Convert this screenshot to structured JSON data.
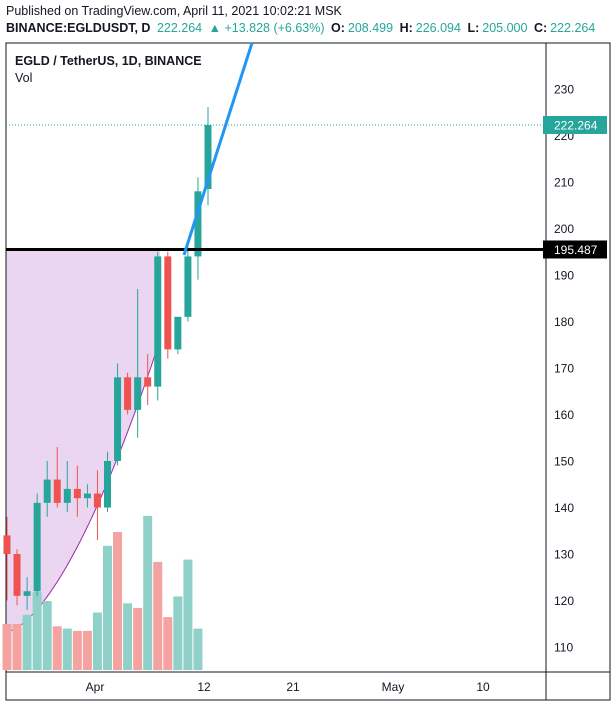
{
  "header": {
    "published": "Published on TradingView.com, April 11, 2021 10:02:21 MSK",
    "symbol": "BINANCE:EGLDUSDT, D",
    "last": "222.264",
    "change": "▲ +13.828 (+6.63%)",
    "o_label": "O:",
    "o_value": "208.499",
    "h_label": "H:",
    "h_value": "226.094",
    "l_label": "L:",
    "l_value": "205.000",
    "c_label": "C:",
    "c_value": "222.264"
  },
  "chart_title": "EGLD / TetherUS, 1D, BINANCE",
  "volume_label": "Vol",
  "price_label": "222.264",
  "level_label": "195.487",
  "colors": {
    "up": "#26a69a",
    "down": "#ef5350",
    "vol_up": "#8fd0c8",
    "vol_down": "#f4a3a1",
    "trend": "#2196f3",
    "level": "#000000",
    "zone": "#e6cfee"
  },
  "chart_data": {
    "type": "candlestick",
    "title": "EGLD / TetherUS, 1D, BINANCE",
    "y_ticks": [
      110,
      120,
      130,
      140,
      150,
      160,
      170,
      180,
      190,
      200,
      210,
      220,
      230
    ],
    "x_ticks": [
      "Apr",
      "12",
      "21",
      "May",
      "10"
    ],
    "ylim": [
      105,
      240
    ],
    "candles": [
      {
        "o": 134,
        "h": 138,
        "l": 120,
        "c": 130
      },
      {
        "o": 130,
        "h": 131,
        "l": 119,
        "c": 121
      },
      {
        "o": 121,
        "h": 125,
        "l": 118,
        "c": 122
      },
      {
        "o": 122,
        "h": 143,
        "l": 121,
        "c": 141
      },
      {
        "o": 141,
        "h": 150,
        "l": 138,
        "c": 146
      },
      {
        "o": 146,
        "h": 153,
        "l": 140,
        "c": 141
      },
      {
        "o": 141,
        "h": 150,
        "l": 139,
        "c": 144
      },
      {
        "o": 144,
        "h": 149,
        "l": 138,
        "c": 142
      },
      {
        "o": 142,
        "h": 145,
        "l": 140,
        "c": 143
      },
      {
        "o": 143,
        "h": 148,
        "l": 133,
        "c": 140
      },
      {
        "o": 140,
        "h": 152,
        "l": 139,
        "c": 150
      },
      {
        "o": 150,
        "h": 171,
        "l": 149,
        "c": 168
      },
      {
        "o": 168,
        "h": 169,
        "l": 160,
        "c": 161
      },
      {
        "o": 161,
        "h": 187,
        "l": 155,
        "c": 168
      },
      {
        "o": 168,
        "h": 173,
        "l": 162,
        "c": 166
      },
      {
        "o": 166,
        "h": 195,
        "l": 163,
        "c": 194
      },
      {
        "o": 194,
        "h": 195,
        "l": 172,
        "c": 174
      },
      {
        "o": 174,
        "h": 181,
        "l": 173,
        "c": 181
      },
      {
        "o": 181,
        "h": 196,
        "l": 180,
        "c": 194
      },
      {
        "o": 194,
        "h": 211,
        "l": 189,
        "c": 208
      },
      {
        "o": 208.499,
        "h": 226.094,
        "l": 205.0,
        "c": 222.264
      }
    ],
    "volume": [
      {
        "v": 10,
        "up": false
      },
      {
        "v": 10,
        "up": false
      },
      {
        "v": 12,
        "up": true
      },
      {
        "v": 17,
        "up": true
      },
      {
        "v": 15,
        "up": true
      },
      {
        "v": 9.5,
        "up": false
      },
      {
        "v": 9,
        "up": true
      },
      {
        "v": 8.5,
        "up": false
      },
      {
        "v": 8.5,
        "up": false
      },
      {
        "v": 12.5,
        "up": true
      },
      {
        "v": 27,
        "up": true
      },
      {
        "v": 30,
        "up": false
      },
      {
        "v": 14.5,
        "up": true
      },
      {
        "v": 13.5,
        "up": false
      },
      {
        "v": 33.5,
        "up": true
      },
      {
        "v": 23.5,
        "up": false
      },
      {
        "v": 11.5,
        "up": false
      },
      {
        "v": 16,
        "up": true
      },
      {
        "v": 24,
        "up": true
      },
      {
        "v": 9,
        "up": true
      },
      {
        "v": 0,
        "up": true
      }
    ],
    "last_price": 222.264,
    "level": 195.487
  }
}
